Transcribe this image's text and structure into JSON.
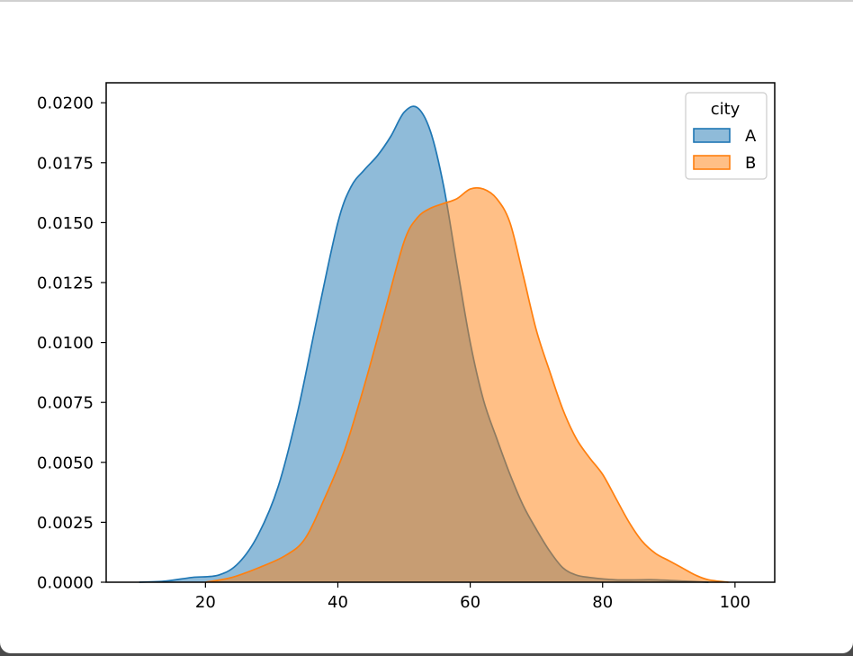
{
  "chart_data": {
    "type": "area",
    "subtype": "kde",
    "title": "",
    "xlabel": "",
    "ylabel": "",
    "xlim": [
      5,
      106
    ],
    "ylim": [
      0,
      0.021
    ],
    "x_ticks": [
      20,
      40,
      60,
      80,
      100
    ],
    "y_ticks": [
      0.0,
      0.0025,
      0.005,
      0.0075,
      0.01,
      0.0125,
      0.015,
      0.0175,
      0.02
    ],
    "y_tick_labels": [
      "0.0000",
      "0.0025",
      "0.0050",
      "0.0075",
      "0.0100",
      "0.0125",
      "0.0150",
      "0.0175",
      "0.0200"
    ],
    "grid": false,
    "legend": {
      "title": "city",
      "placement": "top-right"
    },
    "series": [
      {
        "name": "A",
        "color": "#1f77b4",
        "fill_color": "#8cb8da",
        "points": [
          [
            10,
            0
          ],
          [
            14,
            5e-05
          ],
          [
            18,
            0.0002
          ],
          [
            22,
            0.0003
          ],
          [
            25,
            0.0008
          ],
          [
            28,
            0.002
          ],
          [
            31,
            0.004
          ],
          [
            34,
            0.0072
          ],
          [
            37,
            0.0112
          ],
          [
            40,
            0.015
          ],
          [
            42,
            0.0165
          ],
          [
            44,
            0.0172
          ],
          [
            46,
            0.0178
          ],
          [
            48,
            0.0186
          ],
          [
            50,
            0.0196
          ],
          [
            52,
            0.0198
          ],
          [
            54,
            0.0188
          ],
          [
            56,
            0.0165
          ],
          [
            58,
            0.0132
          ],
          [
            60,
            0.01
          ],
          [
            62,
            0.0076
          ],
          [
            64,
            0.006
          ],
          [
            66,
            0.0045
          ],
          [
            68,
            0.0032
          ],
          [
            70,
            0.0022
          ],
          [
            72,
            0.0013
          ],
          [
            74,
            0.0006
          ],
          [
            76,
            0.0003
          ],
          [
            78,
            0.0002
          ],
          [
            82,
            0.0001
          ],
          [
            86,
            0.0001
          ],
          [
            88,
            0.0001
          ],
          [
            92,
            5e-05
          ],
          [
            96,
            0
          ]
        ]
      },
      {
        "name": "B",
        "color": "#ff7f0e",
        "fill_color": "#febb80",
        "points": [
          [
            20,
            0
          ],
          [
            24,
            0.0002
          ],
          [
            28,
            0.0006
          ],
          [
            32,
            0.0011
          ],
          [
            35,
            0.0018
          ],
          [
            38,
            0.0035
          ],
          [
            41,
            0.0055
          ],
          [
            44,
            0.0082
          ],
          [
            47,
            0.0112
          ],
          [
            50,
            0.0142
          ],
          [
            52,
            0.0152
          ],
          [
            54,
            0.0156
          ],
          [
            56,
            0.0158
          ],
          [
            58,
            0.016
          ],
          [
            60,
            0.0164
          ],
          [
            62,
            0.0164
          ],
          [
            64,
            0.016
          ],
          [
            66,
            0.015
          ],
          [
            68,
            0.0128
          ],
          [
            70,
            0.0105
          ],
          [
            72,
            0.0088
          ],
          [
            74,
            0.0072
          ],
          [
            76,
            0.006
          ],
          [
            78,
            0.0052
          ],
          [
            80,
            0.0045
          ],
          [
            82,
            0.0035
          ],
          [
            84,
            0.0025
          ],
          [
            86,
            0.0017
          ],
          [
            88,
            0.0012
          ],
          [
            90,
            0.0009
          ],
          [
            92,
            0.0006
          ],
          [
            94,
            0.0003
          ],
          [
            96,
            0.0001
          ],
          [
            99,
            0
          ]
        ]
      }
    ]
  }
}
